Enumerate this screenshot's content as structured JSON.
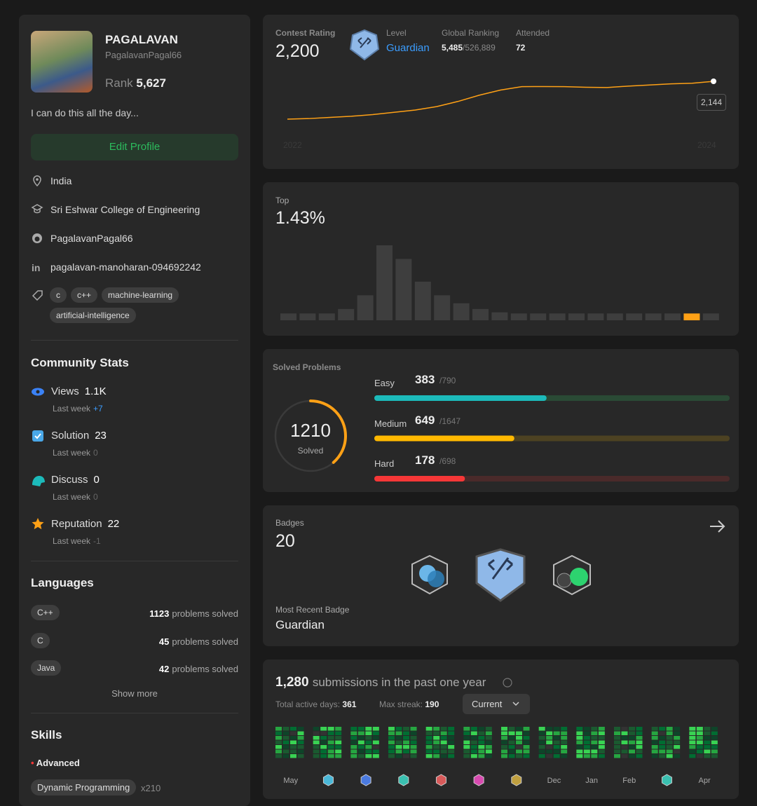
{
  "profile": {
    "name": "PAGALAVAN",
    "username": "PagalavanPagal66",
    "rank_label": "Rank",
    "rank": "5,627",
    "bio": "I can do this all the day...",
    "edit_button": "Edit Profile",
    "location": "India",
    "school": "Sri Eshwar College of Engineering",
    "github": "PagalavanPagal66",
    "linkedin": "pagalavan-manoharan-094692242",
    "tags": [
      "c",
      "c++",
      "machine-learning",
      "artificial-intelligence"
    ]
  },
  "community_stats": {
    "title": "Community Stats",
    "last_week_label": "Last week",
    "items": [
      {
        "label": "Views",
        "value": "1.1K",
        "last_week": "+7"
      },
      {
        "label": "Solution",
        "value": "23",
        "last_week": "0"
      },
      {
        "label": "Discuss",
        "value": "0",
        "last_week": "0"
      },
      {
        "label": "Reputation",
        "value": "22",
        "last_week": "-1"
      }
    ]
  },
  "languages": {
    "title": "Languages",
    "suffix": "problems solved",
    "items": [
      {
        "name": "C++",
        "count": 1123
      },
      {
        "name": "C",
        "count": 45
      },
      {
        "name": "Java",
        "count": 42
      }
    ],
    "show_more": "Show more"
  },
  "skills": {
    "title": "Skills",
    "level": "Advanced",
    "items": [
      {
        "name": "Dynamic Programming",
        "count": "x210"
      }
    ]
  },
  "contest": {
    "rating_label": "Contest Rating",
    "rating": "2,200",
    "level_label": "Level",
    "level": "Guardian",
    "global_ranking_label": "Global Ranking",
    "global_ranking": "5,485",
    "global_total": "/526,889",
    "attended_label": "Attended",
    "attended": "72",
    "x_labels": [
      "2022",
      "2024"
    ],
    "tooltip": "2,144",
    "rating_history": [
      1480,
      1490,
      1510,
      1530,
      1560,
      1600,
      1640,
      1700,
      1790,
      1900,
      1990,
      2050,
      2052,
      2050,
      2040,
      2035,
      2060,
      2080,
      2100,
      2110,
      2144
    ]
  },
  "top": {
    "label": "Top",
    "value": "1.43%",
    "distribution": [
      3,
      3,
      3,
      5,
      11,
      33,
      27,
      17,
      11,
      7.5,
      5,
      3.5,
      3,
      3,
      3,
      3,
      3,
      3,
      3,
      3,
      3,
      3,
      3
    ],
    "highlight_index": 21
  },
  "solved": {
    "title": "Solved Problems",
    "solved": 1210,
    "solved_label": "Solved",
    "difficulties": [
      {
        "name": "Easy",
        "solved": 383,
        "total": {
          "value": 790,
          "label": "/790"
        },
        "color": "#1cbaba",
        "track": "#2a4a35"
      },
      {
        "name": "Medium",
        "solved": 649,
        "total": {
          "value": 1647,
          "label": "/1647"
        },
        "color": "#ffb800",
        "track": "#4d4222"
      },
      {
        "name": "Hard",
        "solved": 178,
        "total": {
          "value": 698,
          "label": "/698"
        },
        "color": "#f63737",
        "track": "#4a2a2a"
      }
    ]
  },
  "badges": {
    "label": "Badges",
    "count": "20",
    "recent_label": "Most Recent Badge",
    "recent": "Guardian"
  },
  "submissions": {
    "count": "1,280",
    "title": "submissions in the past one year",
    "active_days_label": "Total active days:",
    "active_days": 361,
    "max_streak_label": "Max streak:",
    "max_streak": 190,
    "dropdown": "Current",
    "months": [
      "May",
      null,
      null,
      null,
      null,
      null,
      null,
      "Dec",
      "Jan",
      "Feb",
      null,
      "Apr"
    ]
  }
}
